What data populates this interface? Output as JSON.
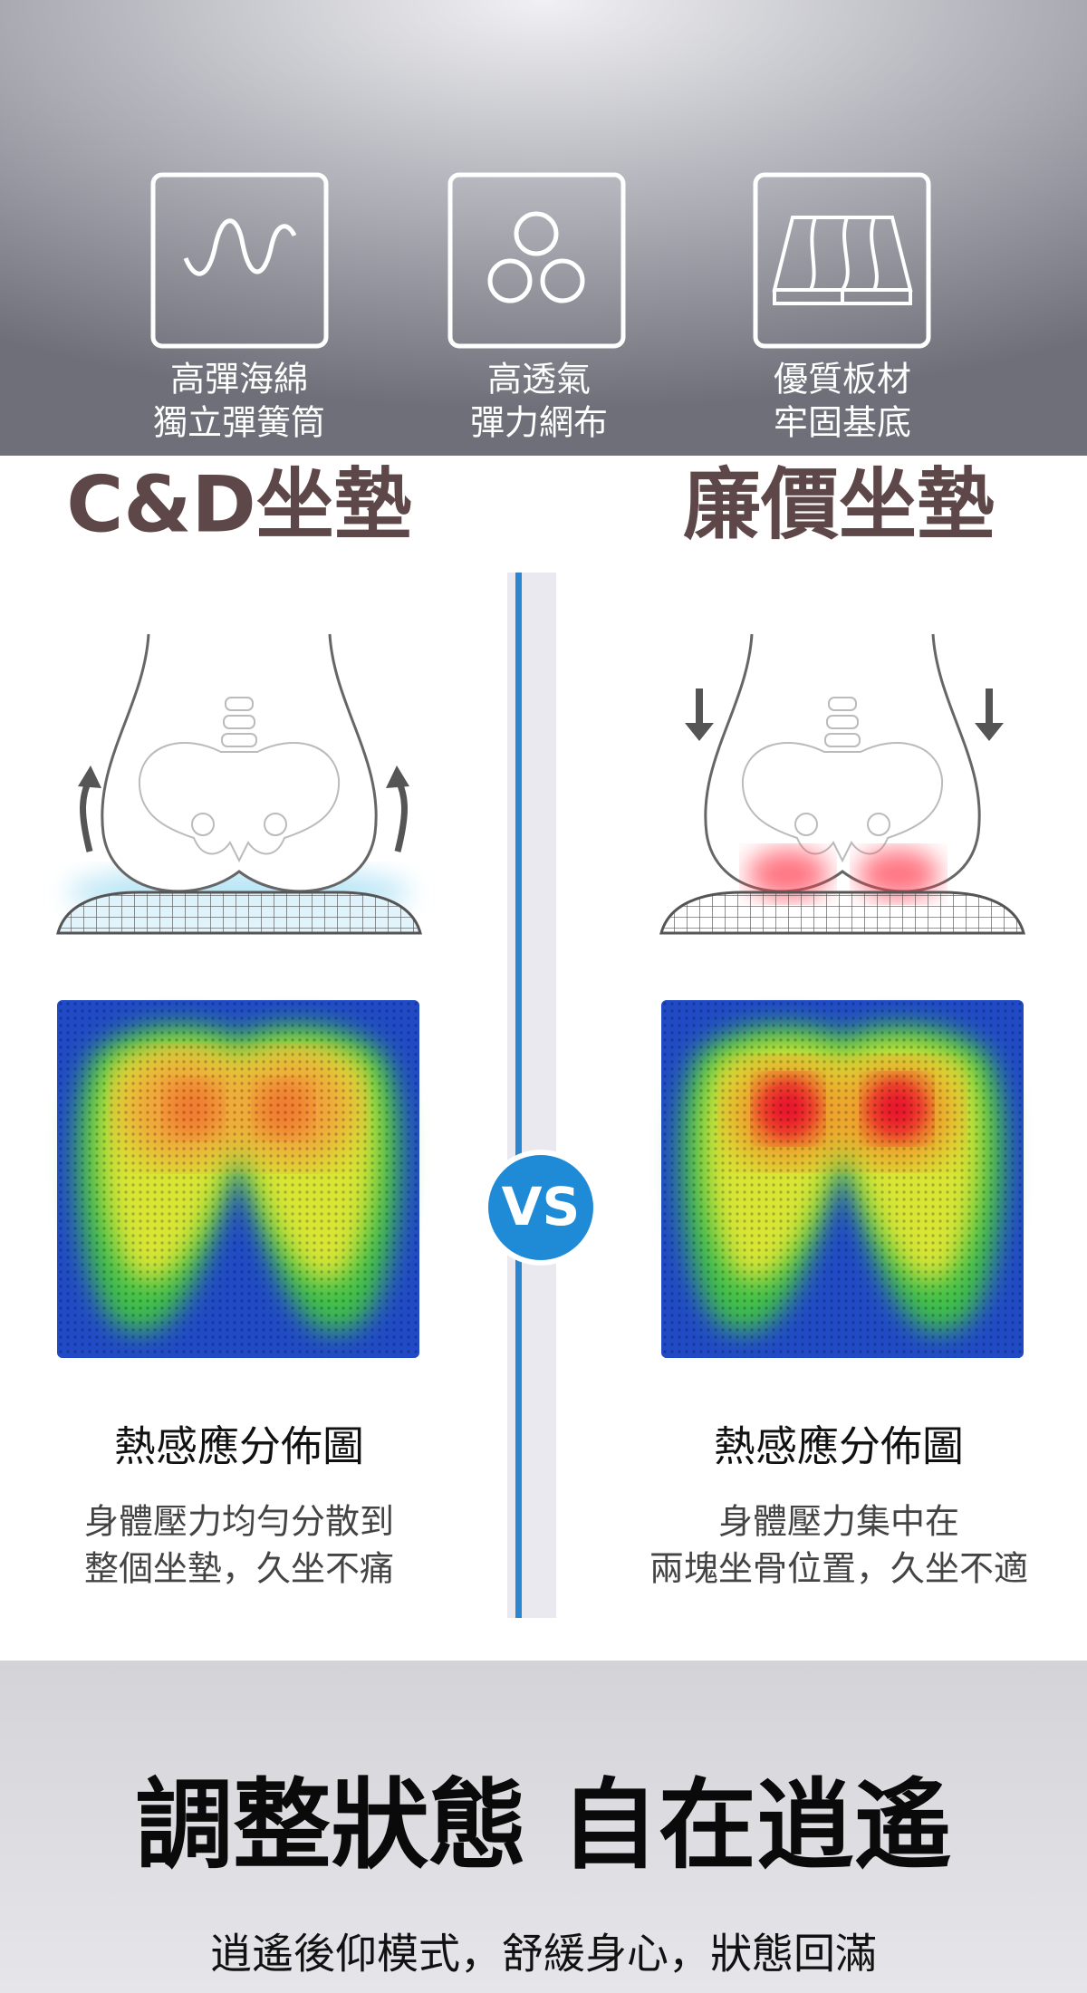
{
  "features": [
    {
      "label_lines": [
        "高彈海綿",
        "獨立彈簧筒"
      ]
    },
    {
      "label_lines": [
        "高透氣",
        "彈力網布"
      ]
    },
    {
      "label_lines": [
        "優質板材",
        "牢固基底"
      ]
    }
  ],
  "comparison": {
    "left": {
      "title": "C&D坐墊",
      "caption": "熱感應分佈圖",
      "description_lines": [
        "身體壓力均勻分散到",
        "整個坐墊，久坐不痛"
      ]
    },
    "right": {
      "title": "廉價坐墊",
      "caption": "熱感應分佈圖",
      "description_lines": [
        "身體壓力集中在",
        "兩塊坐骨位置，久坐不適"
      ]
    },
    "vs_label": "VS"
  },
  "footer": {
    "title": "調整狀態 自在逍遙",
    "subtitle": "逍遙後仰模式，舒緩身心，狀態回滿"
  }
}
